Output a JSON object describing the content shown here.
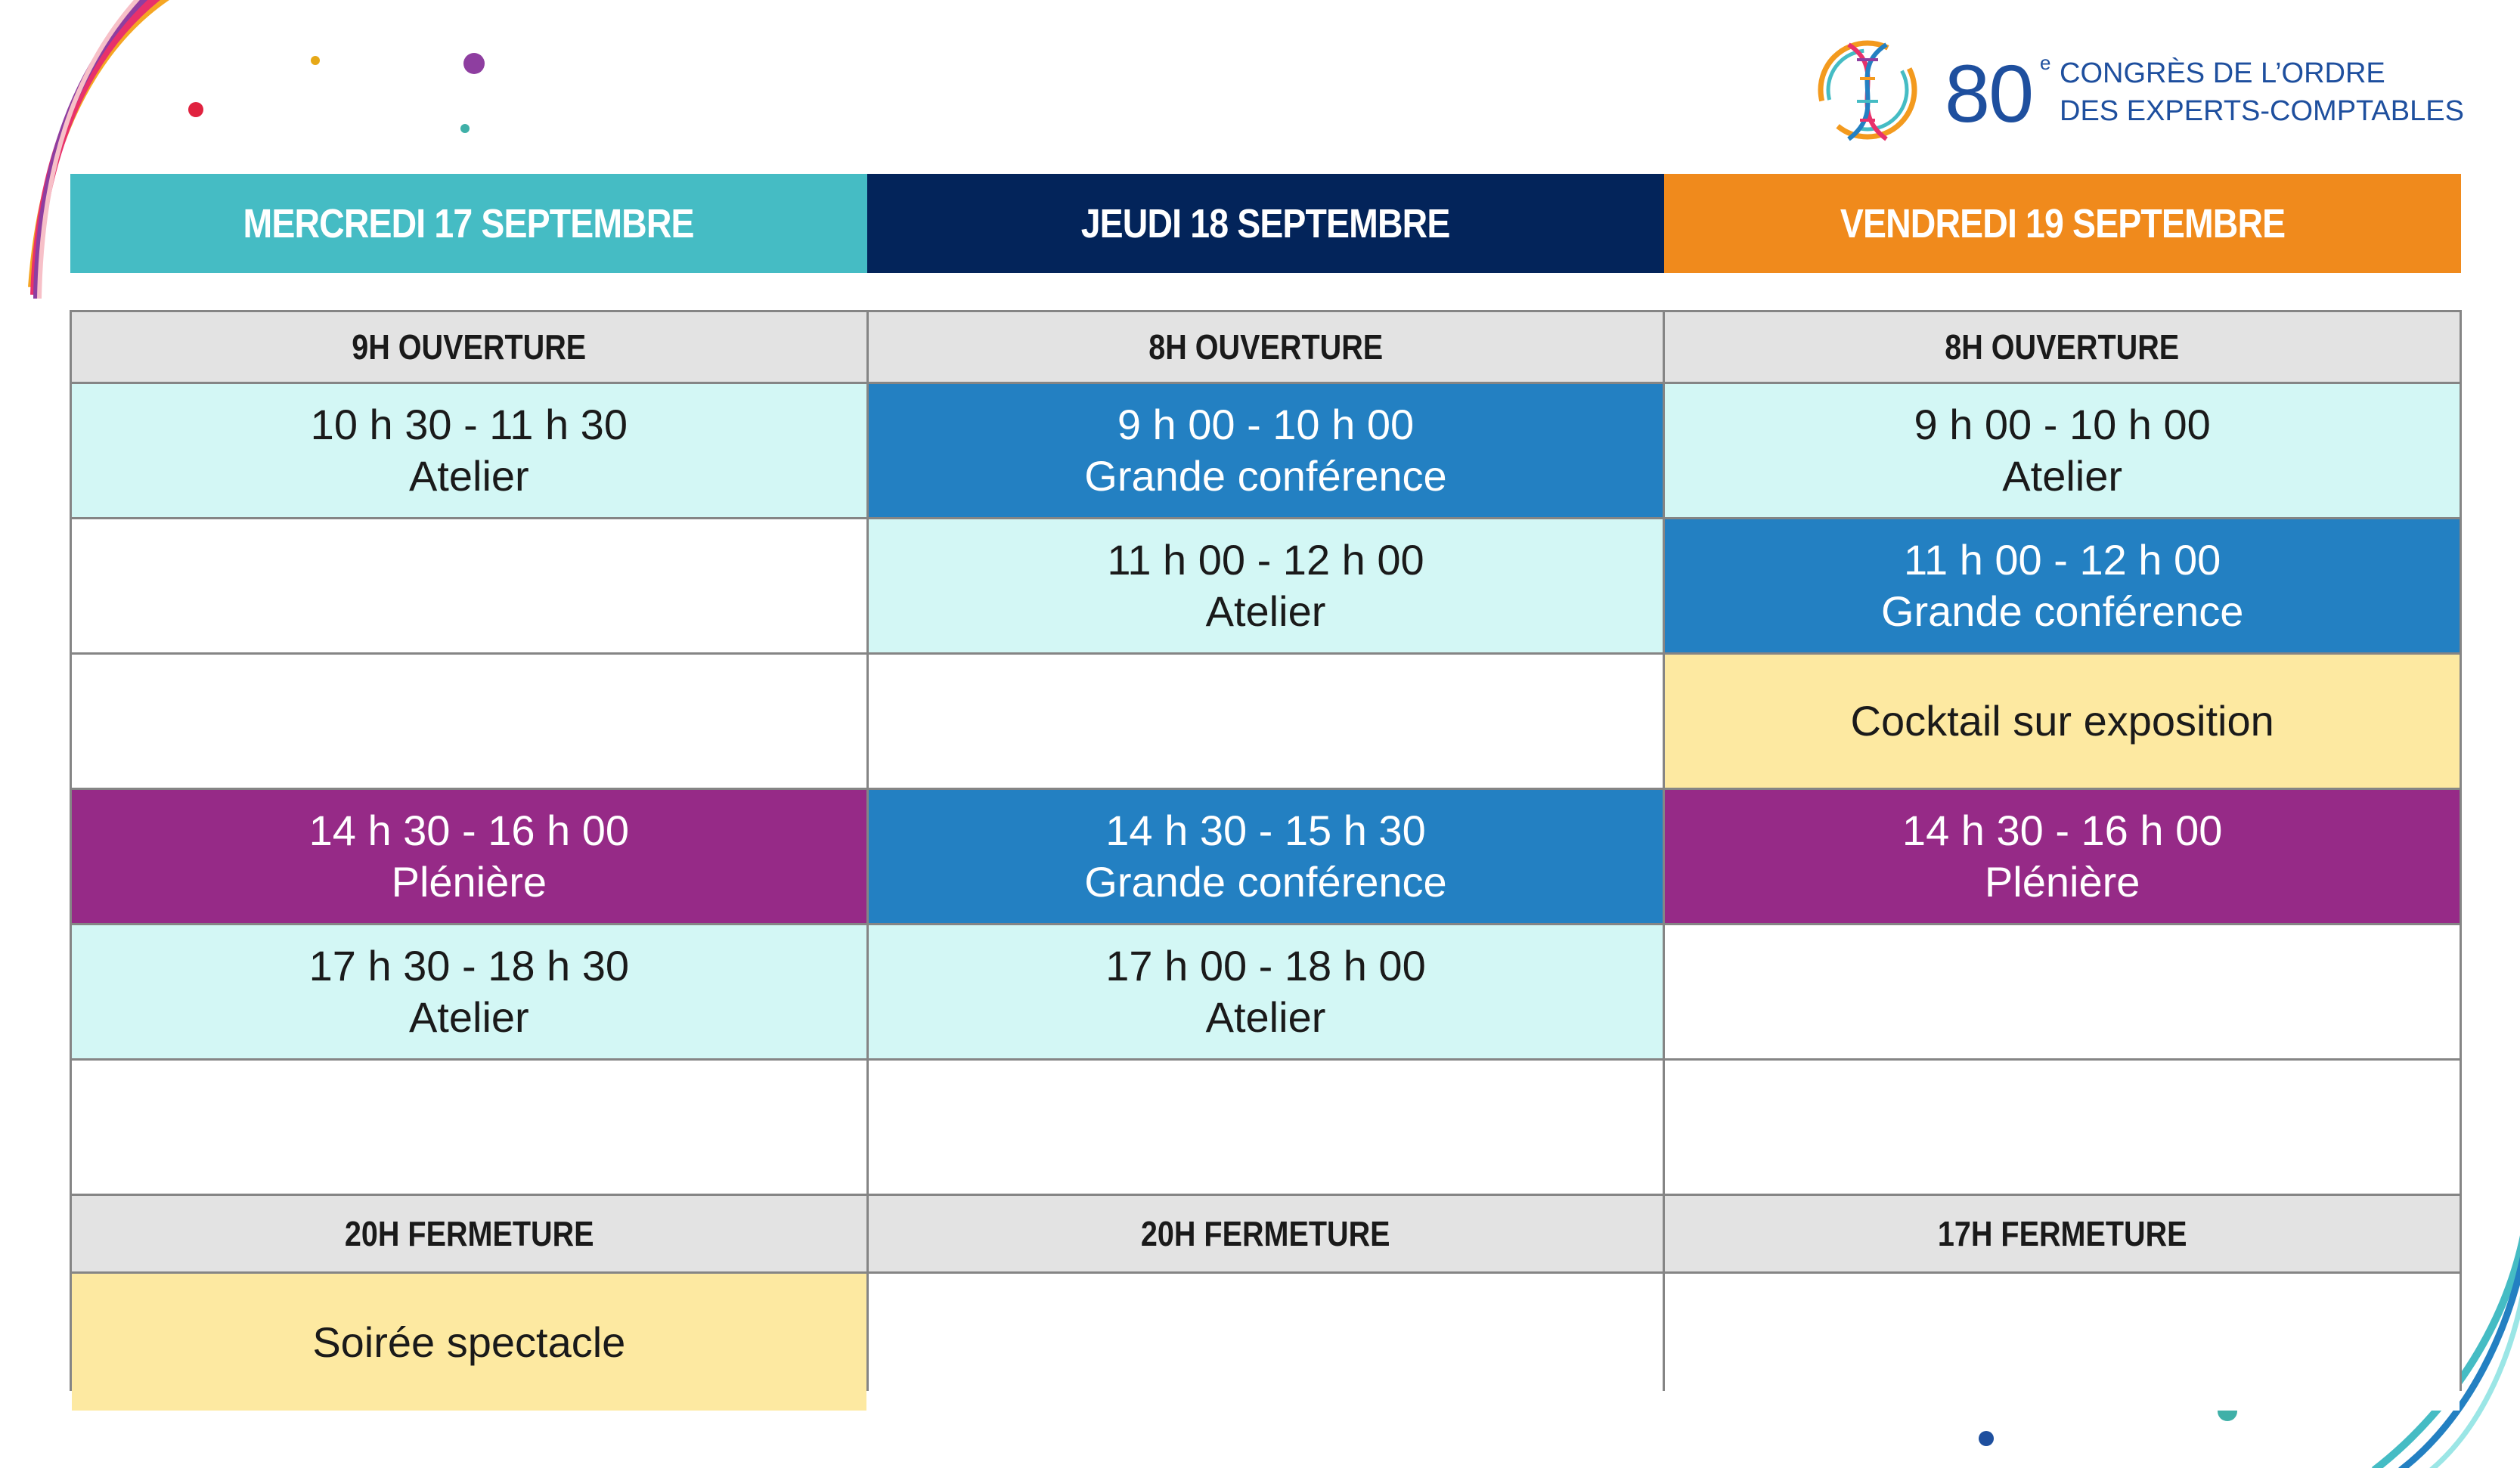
{
  "colors": {
    "mercredi": "#45bcc4",
    "jeudi": "#03245a",
    "vendredi": "#f08a1c",
    "atelier": "#d3f7f5",
    "grande_conference": "#2380c2",
    "pleniere": "#962a87",
    "evenement": "#fde9a1",
    "band": "#e3e3e3"
  },
  "logo": {
    "number": "80",
    "superscript": "e",
    "line1": "CONGRÈS DE L’ORDRE",
    "line2": "DES EXPERTS-COMPTABLES"
  },
  "days": [
    "MERCREDI 17 SEPTEMBRE",
    "JEUDI 18 SEPTEMBRE",
    "VENDREDI 19 SEPTEMBRE"
  ],
  "opening": [
    "9H OUVERTURE",
    "8H OUVERTURE",
    "8H OUVERTURE"
  ],
  "closing": [
    "20H FERMETURE",
    "20H FERMETURE",
    "17H FERMETURE"
  ],
  "slots": {
    "r1": [
      {
        "time": "10 h 30 - 11 h 30",
        "label": "Atelier"
      },
      {
        "time": "9 h 00 - 10 h 00",
        "label": "Grande conférence"
      },
      {
        "time": "9 h 00 - 10 h 00",
        "label": "Atelier"
      }
    ],
    "r2": [
      {
        "time": "11 h 00 - 12 h 00",
        "label": "Atelier"
      },
      {
        "time": "11 h 00 - 12 h 00",
        "label": "Grande conférence"
      }
    ],
    "r3": [
      {
        "label": "Cocktail sur exposition"
      }
    ],
    "r4": [
      {
        "time": "14 h 30 - 16 h 00",
        "label": "Plénière"
      },
      {
        "time": "14 h 30 - 15 h 30",
        "label": "Grande conférence"
      },
      {
        "time": "14 h 30 - 16 h 00",
        "label": "Plénière"
      }
    ],
    "r5": [
      {
        "time": "17 h 30 - 18 h 30",
        "label": "Atelier"
      },
      {
        "time": "17 h 00 - 18 h 00",
        "label": "Atelier"
      }
    ],
    "evening": [
      {
        "label": "Soirée spectacle"
      }
    ]
  }
}
